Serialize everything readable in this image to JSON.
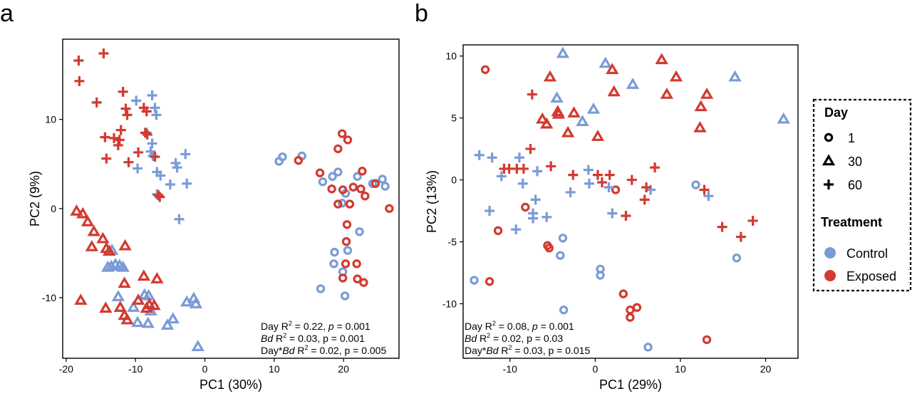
{
  "colors": {
    "Control": "#7b9bd6",
    "Exposed": "#d33a30"
  },
  "legend": {
    "day_title": "Day",
    "day_items": [
      {
        "label": "1",
        "shape": "circle"
      },
      {
        "label": "30",
        "shape": "triangle"
      },
      {
        "label": "60",
        "shape": "plus"
      }
    ],
    "treatment_title": "Treatment",
    "treatment_items": [
      {
        "label": "Control"
      },
      {
        "label": "Exposed"
      }
    ]
  },
  "chart_data": [
    {
      "type": "scatter",
      "panel": "a",
      "xlabel": "PC1 (30%)",
      "ylabel": "PC2 (9%)",
      "xlim": [
        -20.5,
        28
      ],
      "ylim": [
        -16.8,
        19
      ],
      "xticks": [
        -20,
        -10,
        0,
        10,
        20
      ],
      "yticks": [
        -10,
        0,
        10
      ],
      "annotations": [
        {
          "pre": "Day R",
          "sup": "2",
          "mid": " = 0.22, ",
          "it": "p",
          "post": " = 0.001"
        },
        {
          "it_pre": "Bd",
          "pre": " R",
          "sup": "2",
          "post": " = 0.03, p = 0.001"
        },
        {
          "pre": "Day*",
          "it_pre2": "Bd",
          "pre2": " R",
          "sup": "2",
          "post": " = 0.02, p = 0.005"
        }
      ],
      "series": [
        {
          "treatment": "Control",
          "day": "1",
          "points": [
            [
              10.7,
              5.3
            ],
            [
              11.2,
              5.8
            ],
            [
              14,
              5.9
            ],
            [
              17,
              3
            ],
            [
              18.4,
              3.6
            ],
            [
              19.2,
              4.1
            ],
            [
              20.3,
              1.7
            ],
            [
              19.8,
              0.6
            ],
            [
              22,
              3.6
            ],
            [
              24.2,
              2.8
            ],
            [
              24.6,
              2.8
            ],
            [
              25.6,
              3.3
            ],
            [
              26,
              2.5
            ],
            [
              22.3,
              -2.6
            ],
            [
              18.7,
              -4.9
            ],
            [
              20.6,
              -4.7
            ],
            [
              18.6,
              -6.2
            ],
            [
              19.9,
              -7.1
            ],
            [
              16.7,
              -9
            ],
            [
              20.2,
              -9.8
            ]
          ]
        },
        {
          "treatment": "Exposed",
          "day": "1",
          "points": [
            [
              13.5,
              5.4
            ],
            [
              19.8,
              8.4
            ],
            [
              20.6,
              7.7
            ],
            [
              19.2,
              6.7
            ],
            [
              16.6,
              4
            ],
            [
              22.7,
              4.2
            ],
            [
              18.3,
              2.2
            ],
            [
              19.9,
              2.1
            ],
            [
              21.4,
              2.4
            ],
            [
              22.5,
              2.2
            ],
            [
              23.1,
              1.4
            ],
            [
              24.6,
              2.8
            ],
            [
              19.2,
              0.5
            ],
            [
              20.9,
              0.5
            ],
            [
              26.6,
              0
            ],
            [
              20.5,
              -1.8
            ],
            [
              20.4,
              -3.7
            ],
            [
              20.3,
              -6.2
            ],
            [
              21.9,
              -6.2
            ],
            [
              19.9,
              -7.8
            ],
            [
              22,
              -7.9
            ],
            [
              22.9,
              -8.3
            ]
          ]
        },
        {
          "treatment": "Control",
          "day": "30",
          "points": [
            [
              -13.4,
              -4.7
            ],
            [
              -14,
              -6.6
            ],
            [
              -13.5,
              -6.5
            ],
            [
              -12.9,
              -6.3
            ],
            [
              -12.3,
              -6.4
            ],
            [
              -11.8,
              -6.6
            ],
            [
              -12.5,
              -9.9
            ],
            [
              -10.3,
              -11.1
            ],
            [
              -9.7,
              -12.8
            ],
            [
              -8.7,
              -9.7
            ],
            [
              -8.1,
              -9.8
            ],
            [
              -7.8,
              -11.5
            ],
            [
              -8.2,
              -12.9
            ],
            [
              -5.4,
              -13.1
            ],
            [
              -4.6,
              -12.4
            ],
            [
              -2.6,
              -10.5
            ],
            [
              -1.6,
              -10.1
            ],
            [
              -1.3,
              -10.7
            ],
            [
              -1,
              -15.5
            ]
          ]
        },
        {
          "treatment": "Exposed",
          "day": "30",
          "points": [
            [
              -18.5,
              -0.3
            ],
            [
              -17.6,
              -0.6
            ],
            [
              -16.9,
              -1.5
            ],
            [
              -16,
              -2.6
            ],
            [
              -14.7,
              -3.4
            ],
            [
              -16.3,
              -4.3
            ],
            [
              -14.2,
              -4.5
            ],
            [
              -13.8,
              -4.8
            ],
            [
              -11.5,
              -4.2
            ],
            [
              -11.6,
              -8.4
            ],
            [
              -8.8,
              -7.6
            ],
            [
              -6.9,
              -7.9
            ],
            [
              -17.9,
              -10.3
            ],
            [
              -14.3,
              -11.2
            ],
            [
              -12.2,
              -11.1
            ],
            [
              -9.6,
              -10.3
            ],
            [
              -8.4,
              -11.2
            ],
            [
              -8,
              -10.8
            ],
            [
              -7.3,
              -10.9
            ],
            [
              -11.6,
              -12
            ],
            [
              -11.2,
              -12.5
            ]
          ]
        },
        {
          "treatment": "Control",
          "day": "60",
          "points": [
            [
              -9.9,
              12.1
            ],
            [
              -7.6,
              12.7
            ],
            [
              -7.2,
              11.3
            ],
            [
              -7,
              10.5
            ],
            [
              -8.4,
              8.5
            ],
            [
              -7.6,
              7.3
            ],
            [
              -7.8,
              6.4
            ],
            [
              -7.5,
              5.9
            ],
            [
              -9.7,
              4.5
            ],
            [
              -6.9,
              4.1
            ],
            [
              -6.4,
              3.7
            ],
            [
              -5,
              2.7
            ],
            [
              -4.2,
              5.1
            ],
            [
              -4,
              4.6
            ],
            [
              -2.8,
              6.1
            ],
            [
              -2.6,
              2.8
            ],
            [
              -6.9,
              1.6
            ],
            [
              -3.7,
              -1.2
            ]
          ]
        },
        {
          "treatment": "Exposed",
          "day": "60",
          "points": [
            [
              -18.2,
              16.6
            ],
            [
              -14.6,
              17.4
            ],
            [
              -18.1,
              14.3
            ],
            [
              -15.6,
              11.9
            ],
            [
              -11.8,
              13.1
            ],
            [
              -11.4,
              11.2
            ],
            [
              -11.2,
              10.5
            ],
            [
              -8.8,
              11.3
            ],
            [
              -8.4,
              10.9
            ],
            [
              -12.1,
              8.8
            ],
            [
              -12.3,
              7.7
            ],
            [
              -12.5,
              7.1
            ],
            [
              -14.4,
              8
            ],
            [
              -13.1,
              7.9
            ],
            [
              -8.6,
              8.5
            ],
            [
              -8.3,
              8.3
            ],
            [
              -7.2,
              5.8
            ],
            [
              -9.6,
              6.3
            ],
            [
              -11,
              5.2
            ],
            [
              -14.2,
              5.6
            ],
            [
              -6.5,
              1.3
            ],
            [
              -6.7,
              1.5
            ]
          ]
        }
      ]
    },
    {
      "type": "scatter",
      "panel": "b",
      "xlabel": "PC1 (29%)",
      "ylabel": "PC2 (13%)",
      "xlim": [
        -15.5,
        23.8
      ],
      "ylim": [
        -14.4,
        10.9
      ],
      "xticks": [
        -10,
        0,
        10,
        20
      ],
      "yticks": [
        -10,
        -5,
        0,
        5,
        10
      ],
      "annotations": [
        {
          "pre": "Day R",
          "sup": "2",
          "mid": " = 0.08, ",
          "it": "p",
          "post": " = 0.001"
        },
        {
          "it_pre": "Bd",
          "pre": " R",
          "sup": "2",
          "post": " = 0.02, p = 0.03"
        },
        {
          "pre": "Day*",
          "it_pre2": "Bd",
          "pre2": " R",
          "sup": "2",
          "post": " = 0.03, p = 0.015"
        }
      ],
      "series": [
        {
          "treatment": "Control",
          "day": "1",
          "points": [
            [
              -14.2,
              -8.1
            ],
            [
              -3.8,
              -4.7
            ],
            [
              -4.1,
              -6.1
            ],
            [
              0.6,
              -7.2
            ],
            [
              0.6,
              -7.7
            ],
            [
              -3.7,
              -10.5
            ],
            [
              11.8,
              -0.4
            ],
            [
              16.6,
              -6.3
            ],
            [
              6.2,
              -13.5
            ]
          ]
        },
        {
          "treatment": "Exposed",
          "day": "1",
          "points": [
            [
              -12.9,
              8.9
            ],
            [
              -11.4,
              -4.1
            ],
            [
              -12.4,
              -8.2
            ],
            [
              -8.2,
              -2.2
            ],
            [
              -5.6,
              -5.3
            ],
            [
              -5.4,
              -5.5
            ],
            [
              2.4,
              -0.8
            ],
            [
              3.3,
              -9.2
            ],
            [
              4.1,
              -10.5
            ],
            [
              4.1,
              -11.1
            ],
            [
              4.9,
              -10.3
            ],
            [
              13.1,
              -12.9
            ]
          ]
        },
        {
          "treatment": "Control",
          "day": "30",
          "points": [
            [
              -3.8,
              10.2
            ],
            [
              1.2,
              9.4
            ],
            [
              4.4,
              7.7
            ],
            [
              16.4,
              8.3
            ],
            [
              22.1,
              4.9
            ],
            [
              -4.5,
              6.6
            ],
            [
              -1.5,
              4.7
            ],
            [
              -0.2,
              5.7
            ]
          ]
        },
        {
          "treatment": "Exposed",
          "day": "30",
          "points": [
            [
              -5.3,
              8.3
            ],
            [
              2,
              8.9
            ],
            [
              7.8,
              9.7
            ],
            [
              9.5,
              8.3
            ],
            [
              2.2,
              7.1
            ],
            [
              8.4,
              6.9
            ],
            [
              13.1,
              6.9
            ],
            [
              12.4,
              5.9
            ],
            [
              12.3,
              4.2
            ],
            [
              -4.3,
              5.3
            ],
            [
              -4.4,
              5.5
            ],
            [
              -6.2,
              4.9
            ],
            [
              -2.5,
              5.4
            ],
            [
              -5.7,
              4.5
            ],
            [
              -3.2,
              3.8
            ],
            [
              0.3,
              3.5
            ]
          ]
        },
        {
          "treatment": "Control",
          "day": "60",
          "points": [
            [
              -13.6,
              2
            ],
            [
              -12.1,
              1.8
            ],
            [
              -11,
              0.3
            ],
            [
              -8.9,
              1.8
            ],
            [
              -6.8,
              0.7
            ],
            [
              -7,
              -1.6
            ],
            [
              -7.3,
              -2.7
            ],
            [
              -9.3,
              -4
            ],
            [
              -12.4,
              -2.5
            ],
            [
              -7.3,
              -3.1
            ],
            [
              -5.7,
              -3
            ],
            [
              -8.5,
              -0.3
            ],
            [
              -2.9,
              -1
            ],
            [
              -0.8,
              0.8
            ],
            [
              -0.7,
              -0.3
            ],
            [
              1.6,
              -0.6
            ],
            [
              2,
              -2.7
            ],
            [
              6.5,
              -0.8
            ],
            [
              13.3,
              -1.3
            ]
          ]
        },
        {
          "treatment": "Exposed",
          "day": "60",
          "points": [
            [
              -7.4,
              6.9
            ],
            [
              -10.7,
              0.9
            ],
            [
              -10.1,
              0.9
            ],
            [
              -9.2,
              0.9
            ],
            [
              -8.4,
              0.9
            ],
            [
              -7.6,
              2.5
            ],
            [
              -5.2,
              1.1
            ],
            [
              -2.6,
              0.4
            ],
            [
              0.3,
              0.4
            ],
            [
              1.7,
              0.4
            ],
            [
              0.8,
              -0.2
            ],
            [
              4.3,
              0
            ],
            [
              6,
              -0.6
            ],
            [
              5.8,
              -1.6
            ],
            [
              7,
              1
            ],
            [
              3.6,
              -2.9
            ],
            [
              12.8,
              -0.8
            ],
            [
              14.9,
              -3.8
            ],
            [
              17.1,
              -4.6
            ],
            [
              18.5,
              -3.3
            ]
          ]
        }
      ]
    }
  ]
}
